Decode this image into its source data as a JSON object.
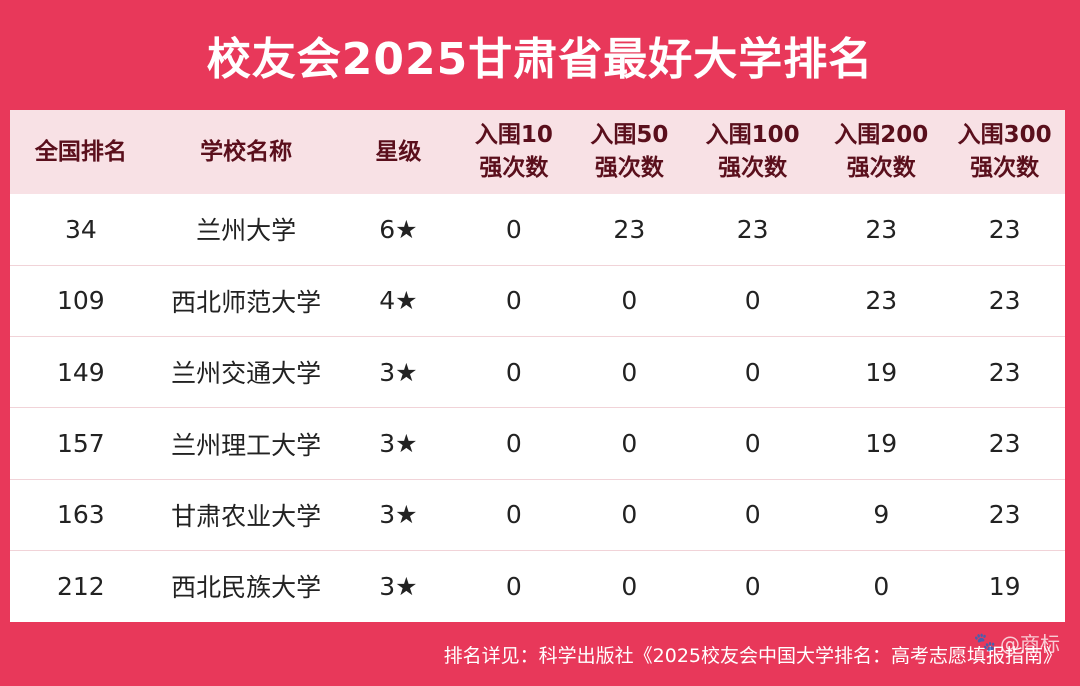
{
  "title": "校友会2025甘肃省最好大学排名",
  "table": {
    "headers": [
      "全国排名",
      "学校名称",
      "星级",
      "入围10\n强次数",
      "入围50\n强次数",
      "入围100\n强次数",
      "入围200\n强次数",
      "入围300\n强次数"
    ],
    "rows": [
      [
        "34",
        "兰州大学",
        "6★",
        "0",
        "23",
        "23",
        "23",
        "23"
      ],
      [
        "109",
        "西北师范大学",
        "4★",
        "0",
        "0",
        "0",
        "23",
        "23"
      ],
      [
        "149",
        "兰州交通大学",
        "3★",
        "0",
        "0",
        "0",
        "19",
        "23"
      ],
      [
        "157",
        "兰州理工大学",
        "3★",
        "0",
        "0",
        "0",
        "19",
        "23"
      ],
      [
        "163",
        "甘肃农业大学",
        "3★",
        "0",
        "0",
        "0",
        "9",
        "23"
      ],
      [
        "212",
        "西北民族大学",
        "3★",
        "0",
        "0",
        "0",
        "0",
        "19"
      ]
    ]
  },
  "footer": {
    "source": "排名详见：科学出版社《2025校友会中国大学排名：高考志愿填报指南》"
  },
  "watermark": "@商标",
  "colors": {
    "background": "#e8385a",
    "header_bg": "#f8e1e5",
    "header_text": "#5a0f1c"
  }
}
